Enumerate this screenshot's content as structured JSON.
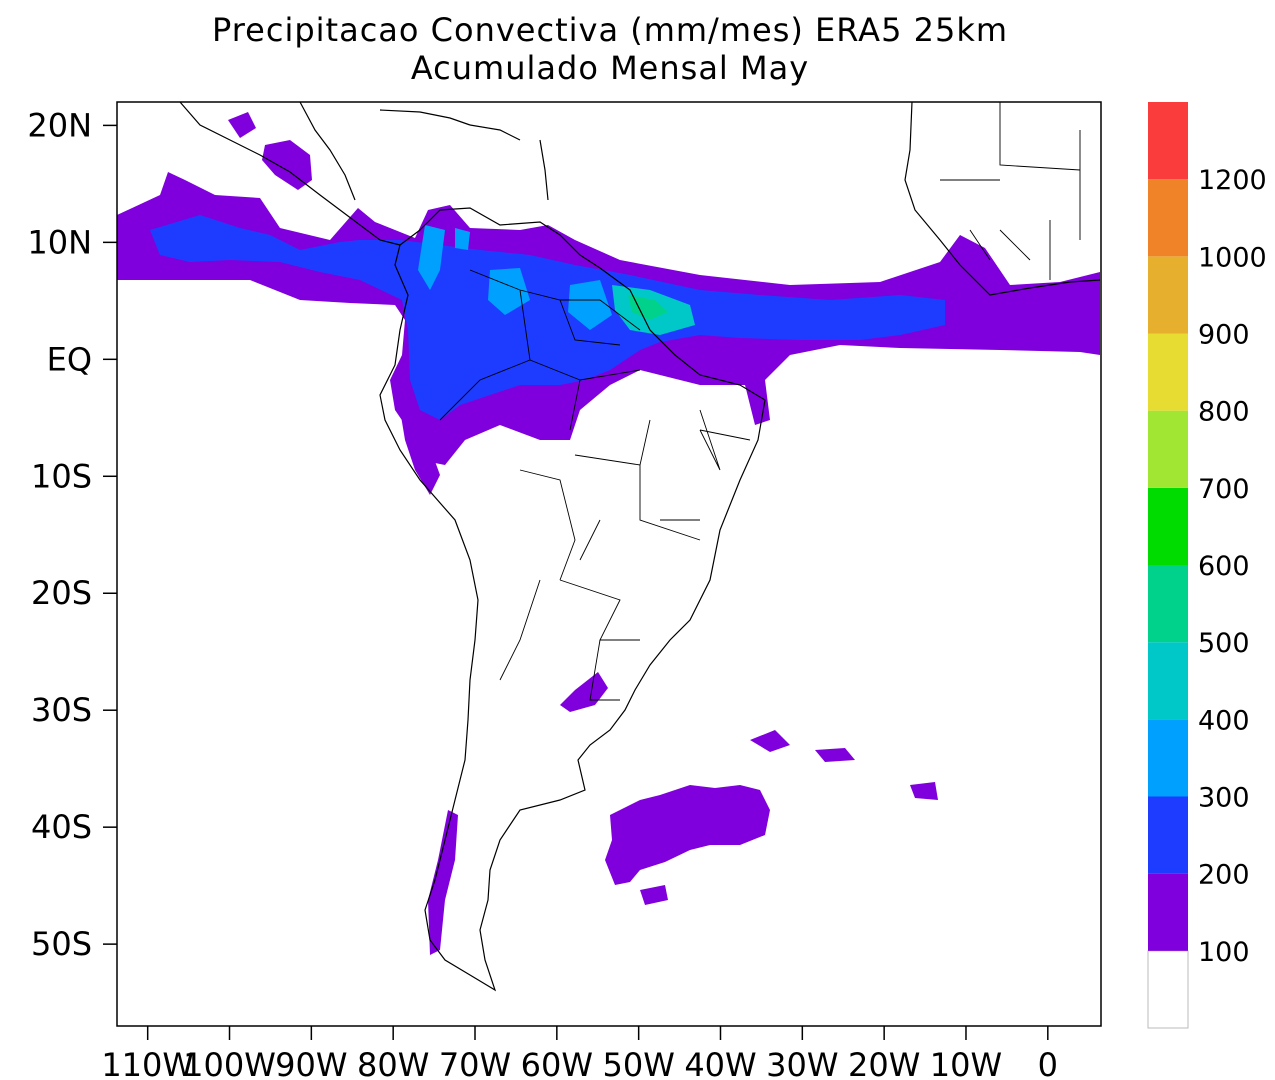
{
  "title": {
    "line1": "Precipitacao Convectiva (mm/mes) ERA5  25km",
    "line2": "Acumulado Mensal May"
  },
  "y_axis": {
    "ticks": [
      {
        "lat": 20,
        "label": "20N"
      },
      {
        "lat": 10,
        "label": "10N"
      },
      {
        "lat": 0,
        "label": "EQ"
      },
      {
        "lat": -10,
        "label": "10S"
      },
      {
        "lat": -20,
        "label": "20S"
      },
      {
        "lat": -30,
        "label": "30S"
      },
      {
        "lat": -40,
        "label": "40S"
      },
      {
        "lat": -50,
        "label": "50S"
      }
    ]
  },
  "x_axis": {
    "ticks": [
      {
        "lon": -110,
        "label": "110W"
      },
      {
        "lon": -100,
        "label": "100W"
      },
      {
        "lon": -90,
        "label": "90W"
      },
      {
        "lon": -80,
        "label": "80W"
      },
      {
        "lon": -70,
        "label": "70W"
      },
      {
        "lon": -60,
        "label": "60W"
      },
      {
        "lon": -50,
        "label": "50W"
      },
      {
        "lon": -40,
        "label": "40W"
      },
      {
        "lon": -30,
        "label": "30W"
      },
      {
        "lon": -20,
        "label": "20W"
      },
      {
        "lon": -10,
        "label": "10W"
      },
      {
        "lon": 0,
        "label": "0"
      }
    ]
  },
  "colorbar": {
    "boxes": [
      {
        "color": "#ffffff"
      },
      {
        "color": "#7f00dc"
      },
      {
        "color": "#1e3cff"
      },
      {
        "color": "#00a0ff"
      },
      {
        "color": "#00c8c8"
      },
      {
        "color": "#00d28c"
      },
      {
        "color": "#00dc00"
      },
      {
        "color": "#a0e632"
      },
      {
        "color": "#e6dc32"
      },
      {
        "color": "#e6af2d"
      },
      {
        "color": "#f08228"
      },
      {
        "color": "#fa3c3c"
      }
    ],
    "labels": [
      "100",
      "200",
      "300",
      "400",
      "500",
      "600",
      "700",
      "800",
      "900",
      "1000",
      "1200"
    ]
  },
  "colors": {
    "c100": "#7f00dc",
    "c200": "#1e3cff",
    "c300": "#00a0ff",
    "c400": "#00c8c8",
    "c500": "#00d28c",
    "c600": "#00dc00"
  }
}
